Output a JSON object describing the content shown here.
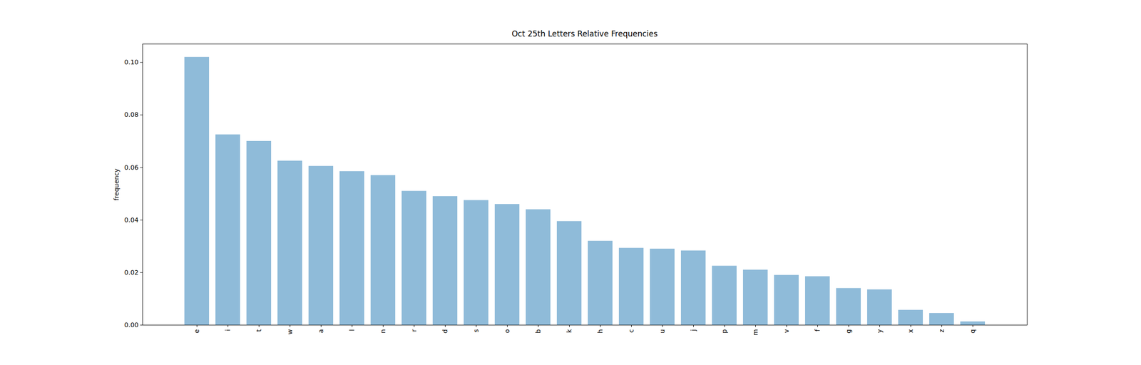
{
  "chart_data": {
    "type": "bar",
    "title": "Oct 25th Letters Relative Frequencies",
    "y_label": "frequency",
    "categories": [
      "e",
      "i",
      "t",
      "w",
      "a",
      "l",
      "n",
      "r",
      "d",
      "s",
      "o",
      "b",
      "k",
      "h",
      "c",
      "u",
      "j",
      "p",
      "m",
      "v",
      "f",
      "g",
      "y",
      "x",
      "z",
      "q"
    ],
    "values": [
      0.102,
      0.0725,
      0.07,
      0.0625,
      0.0605,
      0.0585,
      0.057,
      0.051,
      0.049,
      0.0475,
      0.046,
      0.044,
      0.0395,
      0.032,
      0.0293,
      0.029,
      0.0283,
      0.0225,
      0.021,
      0.019,
      0.0185,
      0.014,
      0.0135,
      0.0057,
      0.0045,
      0.0013
    ],
    "color": "#8fbbd9",
    "ylim": [
      0,
      0.107
    ],
    "yticks": [
      {
        "value": 0,
        "label": "0.00"
      },
      {
        "value": 0.02,
        "label": "0.02"
      },
      {
        "value": 0.04,
        "label": "0.04"
      },
      {
        "value": 0.06,
        "label": "0.06"
      },
      {
        "value": 0.08,
        "label": "0.08"
      },
      {
        "value": 0.1,
        "label": "0.10"
      }
    ],
    "grid": false
  }
}
